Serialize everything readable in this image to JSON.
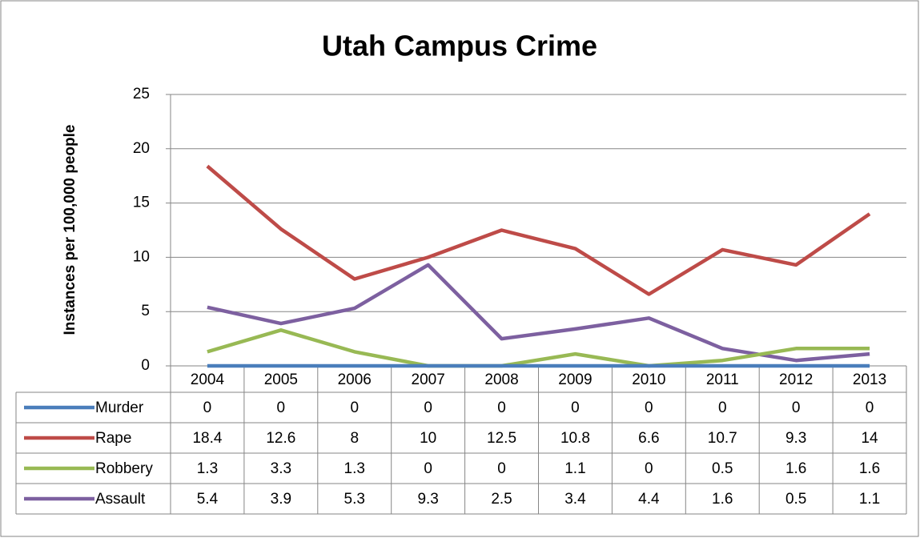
{
  "chart_data": {
    "type": "line",
    "title": "Utah Campus Crime",
    "y_label": "Instances per 100,000 people",
    "categories": [
      "2004",
      "2005",
      "2006",
      "2007",
      "2008",
      "2009",
      "2010",
      "2011",
      "2012",
      "2013"
    ],
    "series": [
      {
        "name": "Murder",
        "color": "#4a7ebb",
        "values": [
          0,
          0,
          0,
          0,
          0,
          0,
          0,
          0,
          0,
          0
        ]
      },
      {
        "name": "Rape",
        "color": "#be4b48",
        "values": [
          18.4,
          12.6,
          8,
          10,
          12.5,
          10.8,
          6.6,
          10.7,
          9.3,
          14
        ]
      },
      {
        "name": "Robbery",
        "color": "#98b954",
        "values": [
          1.3,
          3.3,
          1.3,
          0,
          0,
          1.1,
          0,
          0.5,
          1.6,
          1.6
        ]
      },
      {
        "name": "Assault",
        "color": "#7d60a0",
        "values": [
          5.4,
          3.9,
          5.3,
          9.3,
          2.5,
          3.4,
          4.4,
          1.6,
          0.5,
          1.1
        ]
      }
    ],
    "ylim": [
      0,
      25
    ],
    "yticks": [
      0,
      5,
      10,
      15,
      20,
      25
    ],
    "grid": true,
    "data_table": true
  }
}
